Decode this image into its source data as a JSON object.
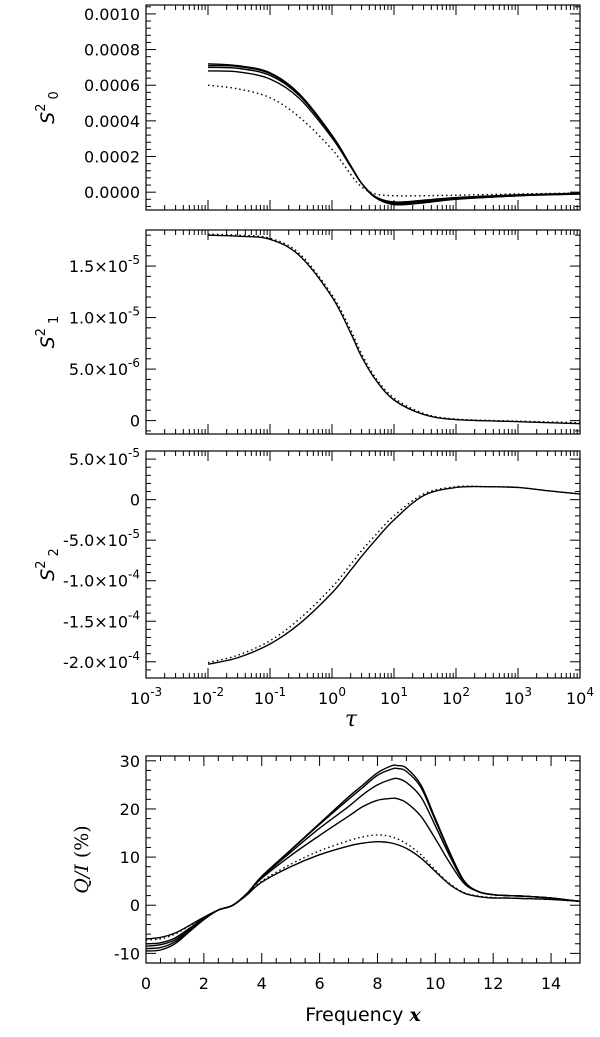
{
  "chart_data": [
    {
      "type": "line",
      "panel": "S2_0",
      "ylabel": "S^2_0",
      "x_scale": "log",
      "xlim": [
        0.001,
        10000
      ],
      "ylim": [
        -0.0001,
        0.00105
      ],
      "y_tick_labels": [
        "0.0010",
        "0.0008",
        "0.0006",
        "0.0004",
        "0.0002",
        "0.0000"
      ],
      "y_ticks": [
        0.001,
        0.0008,
        0.0006,
        0.0004,
        0.0002,
        0.0
      ],
      "series": [
        {
          "style": "solid",
          "x": [
            0.01,
            0.03,
            0.1,
            0.3,
            1,
            2,
            3,
            5,
            10,
            30,
            100,
            1000,
            10000
          ],
          "y": [
            0.00072,
            0.00071,
            0.00067,
            0.00055,
            0.00032,
            0.00015,
            5e-05,
            -3e-05,
            -7e-05,
            -6e-05,
            -4e-05,
            -2e-05,
            -1e-05
          ]
        },
        {
          "style": "solid",
          "x": [
            0.01,
            0.03,
            0.1,
            0.3,
            1,
            2,
            3,
            5,
            10,
            30,
            100,
            1000,
            10000
          ],
          "y": [
            0.00071,
            0.000705,
            0.000665,
            0.000545,
            0.000318,
            0.000148,
            5e-05,
            -3e-05,
            -6.5e-05,
            -5.5e-05,
            -3.8e-05,
            -2e-05,
            -1e-05
          ]
        },
        {
          "style": "solid",
          "x": [
            0.01,
            0.03,
            0.1,
            0.3,
            1,
            2,
            3,
            5,
            10,
            30,
            100,
            1000,
            10000
          ],
          "y": [
            0.0007,
            0.000695,
            0.000655,
            0.00054,
            0.000315,
            0.000147,
            5e-05,
            -2.8e-05,
            -6e-05,
            -5e-05,
            -3.5e-05,
            -1.8e-05,
            -8e-06
          ]
        },
        {
          "style": "solid",
          "x": [
            0.01,
            0.03,
            0.1,
            0.3,
            1,
            2,
            3,
            5,
            10,
            30,
            100,
            1000,
            10000
          ],
          "y": [
            0.00068,
            0.000675,
            0.000635,
            0.000525,
            0.000305,
            0.000143,
            5e-05,
            -2.5e-05,
            -5.5e-05,
            -4.5e-05,
            -3e-05,
            -1.5e-05,
            -6e-06
          ]
        },
        {
          "style": "dotted",
          "x": [
            0.01,
            0.03,
            0.1,
            0.3,
            1,
            2,
            3,
            5,
            10,
            30,
            100,
            1000,
            10000
          ],
          "y": [
            0.0006,
            0.00058,
            0.00053,
            0.00042,
            0.00024,
            0.0001,
            3e-05,
            -1e-05,
            -2e-05,
            -2e-05,
            -1.7e-05,
            -1e-05,
            -5e-06
          ]
        }
      ]
    },
    {
      "type": "line",
      "panel": "S2_1",
      "ylabel": "S^2_1",
      "x_scale": "log",
      "xlim": [
        0.001,
        10000
      ],
      "ylim": [
        -1.3e-06,
        1.85e-05
      ],
      "y_tick_labels": [
        "1.5×10^-5",
        "1.0×10^-5",
        "5.0×10^-6",
        "0"
      ],
      "y_ticks": [
        1.5e-05,
        1e-05,
        5e-06,
        0
      ],
      "series": [
        {
          "style": "solid",
          "x": [
            0.01,
            0.03,
            0.1,
            0.3,
            1,
            2,
            3,
            5,
            10,
            30,
            100,
            1000,
            10000
          ],
          "y": [
            1.8e-05,
            1.79e-05,
            1.76e-05,
            1.6e-05,
            1.2e-05,
            8.5e-06,
            6.2e-06,
            4e-06,
            2e-06,
            6e-07,
            1e-07,
            -1e-07,
            -3e-07
          ]
        },
        {
          "style": "dotted",
          "x": [
            0.01,
            0.03,
            0.1,
            0.3,
            1,
            2,
            3,
            5,
            10,
            30,
            100,
            1000,
            10000
          ],
          "y": [
            1.81e-05,
            1.8e-05,
            1.77e-05,
            1.62e-05,
            1.22e-05,
            8.8e-06,
            6.5e-06,
            4.2e-06,
            2.2e-06,
            7e-07,
            1.5e-07,
            -5e-08,
            -2e-07
          ]
        }
      ]
    },
    {
      "type": "line",
      "panel": "S2_2",
      "ylabel": "S^2_2",
      "x_scale": "log",
      "xlabel": "τ",
      "xlim": [
        0.001,
        10000
      ],
      "ylim": [
        -0.00022,
        6e-05
      ],
      "x_tick_labels": [
        "10^-3",
        "10^-2",
        "10^-1",
        "10^0",
        "10^1",
        "10^2",
        "10^3",
        "10^4"
      ],
      "y_tick_labels": [
        "5.0×10^-5",
        "0",
        "-5.0×10^-5",
        "-1.0×10^-4",
        "-1.5×10^-4",
        "-2.0×10^-4"
      ],
      "y_ticks": [
        5e-05,
        0,
        -5e-05,
        -0.0001,
        -0.00015,
        -0.0002
      ],
      "series": [
        {
          "style": "solid",
          "x": [
            0.01,
            0.03,
            0.1,
            0.3,
            1,
            2,
            3,
            5,
            10,
            30,
            100,
            300,
            1000,
            3000,
            10000
          ],
          "y": [
            -0.000203,
            -0.000195,
            -0.000178,
            -0.000153,
            -0.000115,
            -8.7e-05,
            -7e-05,
            -5e-05,
            -2.5e-05,
            5e-06,
            1.5e-05,
            1.6e-05,
            1.5e-05,
            1.1e-05,
            7e-06
          ]
        },
        {
          "style": "dotted",
          "x": [
            0.01,
            0.03,
            0.1,
            0.3,
            1,
            2,
            3,
            5,
            10,
            30,
            100,
            300,
            1000,
            3000,
            10000
          ],
          "y": [
            -0.000201,
            -0.000192,
            -0.000174,
            -0.000147,
            -0.000108,
            -8e-05,
            -6.3e-05,
            -4.4e-05,
            -2e-05,
            7e-06,
            1.6e-05,
            1.6e-05,
            1.5e-05,
            1.1e-05,
            7e-06
          ]
        }
      ]
    },
    {
      "type": "line",
      "panel": "QI",
      "ylabel": "Q/I (%)",
      "xlabel": "Frequency x",
      "xlim": [
        0,
        15
      ],
      "ylim": [
        -12,
        31
      ],
      "x_tick_labels": [
        "0",
        "2",
        "4",
        "6",
        "8",
        "10",
        "12",
        "14"
      ],
      "x_ticks": [
        0,
        2,
        4,
        6,
        8,
        10,
        12,
        14
      ],
      "y_tick_labels": [
        "30",
        "20",
        "10",
        "0",
        "-10"
      ],
      "y_ticks": [
        30,
        20,
        10,
        0,
        -10
      ],
      "series": [
        {
          "style": "solid",
          "x": [
            0,
            0.5,
            1,
            1.5,
            2,
            2.5,
            3,
            3.5,
            4,
            5,
            6,
            7,
            7.5,
            8,
            8.5,
            8.7,
            9,
            9.5,
            10,
            10.5,
            11,
            11.5,
            12,
            12.5,
            13,
            14,
            15
          ],
          "y": [
            -9.5,
            -9.3,
            -8,
            -5.5,
            -3,
            -1,
            0,
            2.5,
            6,
            11.5,
            17,
            22.5,
            25,
            27.5,
            29,
            29,
            28.5,
            25,
            18,
            11,
            5,
            2.8,
            2.2,
            2,
            1.9,
            1.5,
            0.8
          ]
        },
        {
          "style": "solid",
          "x": [
            0,
            0.5,
            1,
            1.5,
            2,
            2.5,
            3,
            3.5,
            4,
            5,
            6,
            7,
            7.5,
            8,
            8.5,
            8.7,
            9,
            9.5,
            10,
            10.5,
            11,
            11.5,
            12,
            12.5,
            13,
            14,
            15
          ],
          "y": [
            -9,
            -8.8,
            -7.6,
            -5.3,
            -2.9,
            -1,
            0,
            2.5,
            6,
            11.4,
            16.8,
            22,
            24.5,
            27,
            28.3,
            28.4,
            27.8,
            24.5,
            17.6,
            10.8,
            5,
            2.8,
            2.2,
            2,
            1.9,
            1.5,
            0.8
          ]
        },
        {
          "style": "solid",
          "x": [
            0,
            0.5,
            1,
            1.5,
            2,
            2.5,
            3,
            3.5,
            4,
            5,
            6,
            7,
            7.5,
            8,
            8.5,
            8.7,
            9,
            9.5,
            10,
            10.5,
            11,
            11.5,
            12,
            12.5,
            13,
            14,
            15
          ],
          "y": [
            -8.5,
            -8.2,
            -7.2,
            -5,
            -2.8,
            -1,
            0,
            2.5,
            5.8,
            11,
            16,
            20.5,
            23,
            25,
            26.2,
            26.3,
            25.5,
            22.5,
            16.5,
            10.2,
            4.8,
            2.8,
            2.2,
            2,
            1.9,
            1.5,
            0.8
          ]
        },
        {
          "style": "solid",
          "x": [
            0,
            0.5,
            1,
            1.5,
            2,
            2.5,
            3,
            3.5,
            4,
            5,
            6,
            7,
            7.5,
            8,
            8.5,
            8.7,
            9,
            9.5,
            10,
            10.5,
            11,
            11.5,
            12,
            12.5,
            13,
            14,
            15
          ],
          "y": [
            -8,
            -7.8,
            -6.8,
            -4.8,
            -2.7,
            -1,
            0,
            2.5,
            5.6,
            10.3,
            14.5,
            18.5,
            20.5,
            21.8,
            22.2,
            22.1,
            21.3,
            18.5,
            13.8,
            8.8,
            4.5,
            2.8,
            2.2,
            2,
            1.9,
            1.5,
            0.8
          ]
        },
        {
          "style": "solid",
          "x": [
            0,
            0.5,
            1,
            1.5,
            2,
            2.5,
            3,
            3.5,
            4,
            5,
            6,
            7,
            7.5,
            8,
            8.5,
            9,
            9.5,
            10,
            10.5,
            11,
            11.5,
            12,
            12.5,
            13,
            14,
            15
          ],
          "y": [
            -7,
            -6.7,
            -5.8,
            -4.2,
            -2.5,
            -1,
            0,
            2.2,
            4.8,
            8,
            10.5,
            12.3,
            12.9,
            13.2,
            12.9,
            11.8,
            9.8,
            7,
            4.3,
            2.5,
            1.8,
            1.5,
            1.5,
            1.4,
            1.2,
            0.8
          ]
        },
        {
          "style": "dotted",
          "x": [
            0,
            0.5,
            1,
            1.5,
            2,
            2.5,
            3,
            3.5,
            4,
            5,
            6,
            7,
            7.5,
            8,
            8.5,
            9,
            9.5,
            10,
            10.5,
            11,
            11.5,
            12,
            12.5,
            13,
            14,
            15
          ],
          "y": [
            -7.2,
            -7,
            -6,
            -4.3,
            -2.6,
            -1,
            0,
            2.3,
            5,
            8.5,
            11.3,
            13.4,
            14.2,
            14.6,
            14.2,
            12.8,
            10.5,
            7.3,
            4.5,
            2.6,
            1.9,
            1.6,
            1.5,
            1.4,
            1.2,
            0.8
          ]
        }
      ]
    }
  ]
}
